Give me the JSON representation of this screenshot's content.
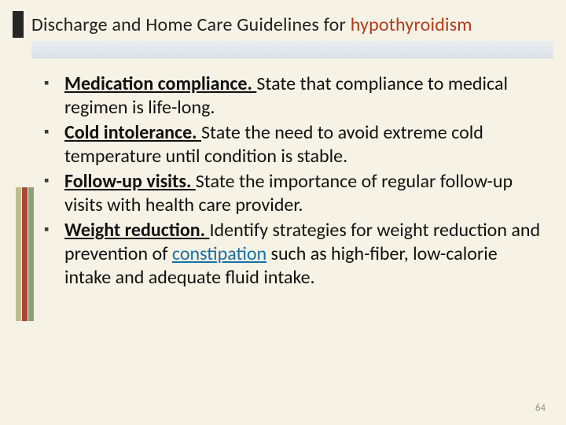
{
  "colors": {
    "background": "#f6f2e6",
    "accent_block": "#262626",
    "title_text": "#222222",
    "title_highlight": "#b33c1a",
    "underline_gradient_top": "#e9eef2",
    "underline_gradient_bottom": "#dde4ea",
    "bullet_marker": "#3b3b3b",
    "body_text": "#111111",
    "link": "#1a6fa3",
    "pagenum": "#9a8f6e",
    "stripe1": "#c0bb8a",
    "stripe2": "#a9473a",
    "stripe3": "#8aa07a"
  },
  "typography": {
    "title_fontsize_pt": 18,
    "body_fontsize_pt": 18,
    "pagenum_fontsize_pt": 10,
    "font_family": "Segoe UI / Calibri / Arial"
  },
  "title": {
    "main": "Discharge and Home Care Guidelines for  ",
    "highlight": "hypothyroidism"
  },
  "bullets": [
    {
      "lead": "Medication compliance. ",
      "rest": "State that compliance to medical regimen is life-long."
    },
    {
      "lead": "Cold intolerance. ",
      "rest": "State the need to avoid extreme cold temperature until condition is stable."
    },
    {
      "lead": "Follow-up visits. ",
      "rest": "State the importance of regular follow-up visits with health care provider."
    },
    {
      "lead": "Weight reduction. ",
      "rest_pre": "Identify strategies for weight reduction and prevention of ",
      "link": "constipation",
      "rest_post": " such as high-fiber, low-calorie intake and adequate fluid intake."
    }
  ],
  "page_number": "64"
}
